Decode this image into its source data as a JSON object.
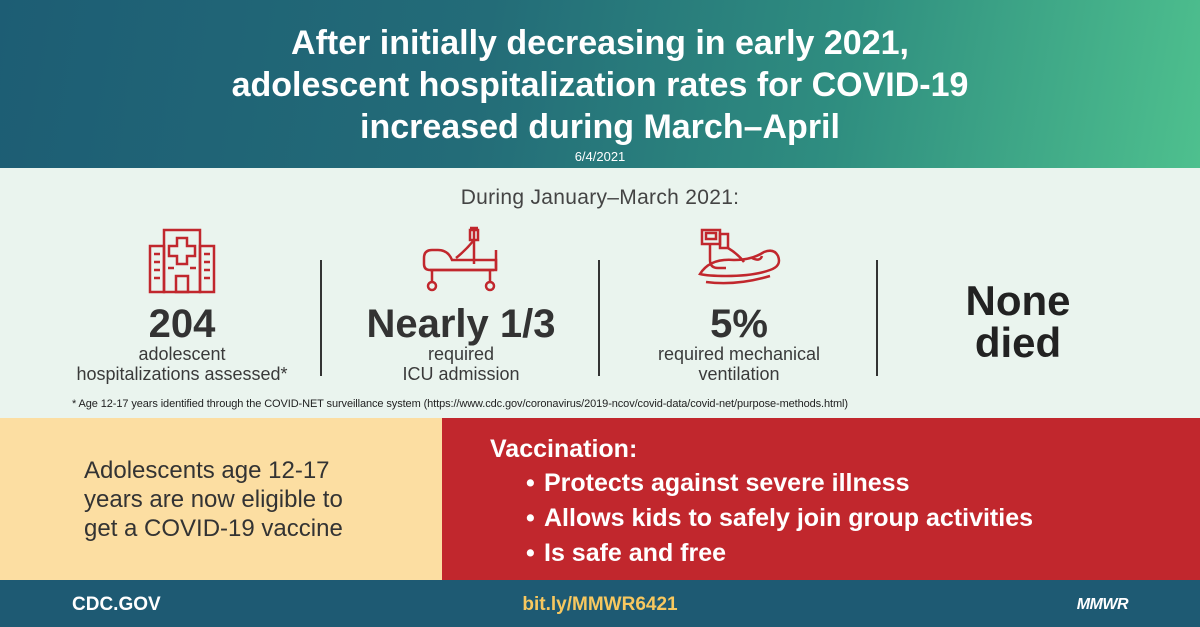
{
  "header": {
    "title_lines": [
      "After initially decreasing in early 2021,",
      "adolescent hospitalization rates for COVID-19",
      "increased during March–April"
    ],
    "date": "6/4/2021"
  },
  "stats": {
    "intro": "During January–March 2021:",
    "items": [
      {
        "icon": "hospital-icon",
        "big": "204",
        "small_lines": [
          "adolescent",
          "hospitalizations assessed*"
        ]
      },
      {
        "icon": "hospital-bed-icon",
        "big": "Nearly 1/3",
        "small_lines": [
          "required",
          "ICU admission"
        ]
      },
      {
        "icon": "ventilator-icon",
        "big": "5%",
        "small_lines": [
          "required mechanical",
          "ventilation"
        ]
      },
      {
        "icon": "",
        "big_lines": [
          "None",
          "died"
        ]
      }
    ],
    "footnote": "* Age 12-17 years identified through the COVID-NET surveillance system (https://www.cdc.gov/coronavirus/2019-ncov/covid-data/covid-net/purpose-methods.html)"
  },
  "eligibility": {
    "lines": [
      "Adolescents age 12-17",
      "years are now eligible to",
      "get a COVID-19 vaccine"
    ]
  },
  "vaccination": {
    "title": "Vaccination:",
    "bullet": "•",
    "points": [
      "Protects against severe illness",
      "Allows kids to safely join group activities",
      "Is safe and free"
    ]
  },
  "footer": {
    "site": "CDC.GOV",
    "link": "bit.ly/MMWR6421",
    "brand": "MMWR"
  },
  "colors": {
    "icon_red": "#c1272d",
    "panel_red": "#c1272d",
    "panel_yellow": "#fcdea2",
    "footer_blue": "#1e5a73",
    "link_gold": "#f7c85f"
  }
}
